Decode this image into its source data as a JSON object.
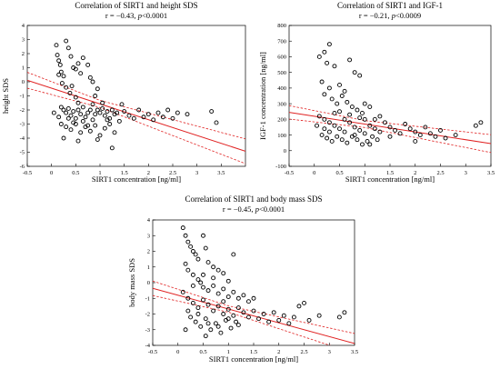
{
  "chart_data": [
    {
      "type": "scatter",
      "title": "Correlation of SIRT1 and height SDS",
      "subtitle": "r = −0.43, p<0.0001",
      "subtitle_parts": {
        "prefix": "r = −0.43, ",
        "p": "p",
        "suffix": "<0.0001"
      },
      "xlabel": "SIRT1 concentration [ng/ml]",
      "ylabel": "height SDS",
      "xlim": [
        -0.5,
        4
      ],
      "ylim": [
        -6,
        4
      ],
      "xticks": [
        "-0.5",
        "0",
        "0.5",
        "1",
        "1.5",
        "2",
        "2.5",
        "3",
        "3.5"
      ],
      "yticks": [
        "-6",
        "-5",
        "-4",
        "-3",
        "-2",
        "-1",
        "0",
        "1",
        "2",
        "3",
        "4"
      ],
      "regression": {
        "slope": -1.12,
        "intercept": -0.45,
        "ci_halfwidth_at_mean": 0.25,
        "ci_spread": 0.42
      },
      "points": [
        [
          0.1,
          2.6
        ],
        [
          0.12,
          1.9
        ],
        [
          0.15,
          1.5
        ],
        [
          0.18,
          1.2
        ],
        [
          0.2,
          0.7
        ],
        [
          0.25,
          0.4
        ],
        [
          0.3,
          2.9
        ],
        [
          0.35,
          2.4
        ],
        [
          0.4,
          1.8
        ],
        [
          0.45,
          1.0
        ],
        [
          0.5,
          0.9
        ],
        [
          0.55,
          1.3
        ],
        [
          0.6,
          0.6
        ],
        [
          0.65,
          1.7
        ],
        [
          0.75,
          1.2
        ],
        [
          0.8,
          0.3
        ],
        [
          0.85,
          0.0
        ],
        [
          0.95,
          -0.5
        ],
        [
          0.15,
          0.5
        ],
        [
          0.22,
          -0.1
        ],
        [
          0.3,
          -0.4
        ],
        [
          0.38,
          -0.8
        ],
        [
          0.42,
          -0.3
        ],
        [
          0.5,
          -1.1
        ],
        [
          0.2,
          -1.8
        ],
        [
          0.25,
          -2.0
        ],
        [
          0.3,
          -2.2
        ],
        [
          0.35,
          -1.9
        ],
        [
          0.4,
          -2.4
        ],
        [
          0.45,
          -2.1
        ],
        [
          0.5,
          -2.6
        ],
        [
          0.55,
          -2.0
        ],
        [
          0.6,
          -2.3
        ],
        [
          0.65,
          -1.8
        ],
        [
          0.7,
          -2.5
        ],
        [
          0.75,
          -2.2
        ],
        [
          0.8,
          -2.0
        ],
        [
          0.85,
          -2.7
        ],
        [
          0.9,
          -2.3
        ],
        [
          0.95,
          -2.0
        ],
        [
          1.0,
          -2.2
        ],
        [
          1.05,
          -1.9
        ],
        [
          1.1,
          -2.4
        ],
        [
          1.15,
          -2.1
        ],
        [
          1.2,
          -2.6
        ],
        [
          1.25,
          -2.0
        ],
        [
          1.3,
          -2.3
        ],
        [
          1.35,
          -2.2
        ],
        [
          1.4,
          -2.8
        ],
        [
          1.5,
          -2.1
        ],
        [
          1.6,
          -2.4
        ],
        [
          1.7,
          -2.6
        ],
        [
          1.8,
          -2.0
        ],
        [
          1.9,
          -2.5
        ],
        [
          2.0,
          -2.3
        ],
        [
          2.1,
          -2.7
        ],
        [
          2.2,
          -2.2
        ],
        [
          2.3,
          -2.5
        ],
        [
          2.4,
          -2.0
        ],
        [
          2.5,
          -2.6
        ],
        [
          2.6,
          -2.2
        ],
        [
          2.8,
          -2.3
        ],
        [
          3.3,
          -2.1
        ],
        [
          3.4,
          -2.9
        ],
        [
          0.3,
          -3.2
        ],
        [
          0.4,
          -3.4
        ],
        [
          0.5,
          -3.0
        ],
        [
          0.6,
          -3.6
        ],
        [
          0.7,
          -3.2
        ],
        [
          0.8,
          -3.5
        ],
        [
          0.9,
          -3.1
        ],
        [
          1.0,
          -3.8
        ],
        [
          1.1,
          -3.3
        ],
        [
          1.2,
          -3.0
        ],
        [
          1.3,
          -3.6
        ],
        [
          0.25,
          -4.0
        ],
        [
          0.55,
          -4.2
        ],
        [
          0.95,
          -4.1
        ],
        [
          1.25,
          -4.7
        ],
        [
          0.45,
          -2.9
        ],
        [
          0.65,
          -2.8
        ],
        [
          0.85,
          -1.6
        ],
        [
          1.05,
          -1.5
        ],
        [
          1.45,
          -1.6
        ],
        [
          0.15,
          -2.5
        ],
        [
          0.2,
          -3.0
        ],
        [
          0.35,
          -2.6
        ],
        [
          0.55,
          -1.5
        ],
        [
          0.75,
          -3.1
        ],
        [
          1.15,
          -2.7
        ],
        [
          0.05,
          -2.2
        ],
        [
          0.9,
          -1.0
        ]
      ]
    },
    {
      "type": "scatter",
      "title": "Correlation of SIRT1 and IGF-1",
      "subtitle": "r = −0.21, p<0.0009",
      "subtitle_parts": {
        "prefix": "r = −0.21, ",
        "p": "p",
        "suffix": "<0.0009"
      },
      "xlabel": "SIRT1 concentration [ng/ml]",
      "ylabel": "IGF-1 concentration [ng/ml]",
      "xlim": [
        -0.5,
        3.5
      ],
      "ylim": [
        -100,
        800
      ],
      "xticks": [
        "-0.5",
        "0",
        "0.5",
        "1",
        "1.5",
        "2",
        "2.5",
        "3",
        "3.5"
      ],
      "yticks": [
        "-100",
        "0",
        "100",
        "200",
        "300",
        "400",
        "500",
        "600",
        "700",
        "800"
      ],
      "regression": {
        "slope": -50,
        "intercept": 220,
        "ci_halfwidth_at_mean": 22,
        "ci_spread": 28
      },
      "points": [
        [
          0.1,
          600
        ],
        [
          0.2,
          630
        ],
        [
          0.3,
          680
        ],
        [
          0.25,
          560
        ],
        [
          0.4,
          540
        ],
        [
          0.5,
          420
        ],
        [
          0.6,
          380
        ],
        [
          0.7,
          580
        ],
        [
          0.8,
          500
        ],
        [
          0.9,
          480
        ],
        [
          0.15,
          440
        ],
        [
          0.3,
          400
        ],
        [
          0.2,
          360
        ],
        [
          0.35,
          330
        ],
        [
          0.45,
          300
        ],
        [
          0.55,
          350
        ],
        [
          0.65,
          310
        ],
        [
          0.75,
          280
        ],
        [
          0.85,
          260
        ],
        [
          0.95,
          240
        ],
        [
          1.0,
          300
        ],
        [
          1.1,
          280
        ],
        [
          0.1,
          220
        ],
        [
          0.2,
          200
        ],
        [
          0.3,
          180
        ],
        [
          0.4,
          160
        ],
        [
          0.5,
          140
        ],
        [
          0.6,
          120
        ],
        [
          0.7,
          180
        ],
        [
          0.8,
          150
        ],
        [
          0.9,
          130
        ],
        [
          1.0,
          110
        ],
        [
          1.1,
          160
        ],
        [
          1.2,
          140
        ],
        [
          1.3,
          120
        ],
        [
          1.4,
          180
        ],
        [
          1.5,
          150
        ],
        [
          1.6,
          130
        ],
        [
          1.7,
          110
        ],
        [
          1.8,
          170
        ],
        [
          1.9,
          140
        ],
        [
          2.0,
          120
        ],
        [
          2.1,
          100
        ],
        [
          2.2,
          150
        ],
        [
          2.3,
          110
        ],
        [
          2.4,
          90
        ],
        [
          2.5,
          130
        ],
        [
          2.6,
          80
        ],
        [
          2.8,
          100
        ],
        [
          3.2,
          160
        ],
        [
          3.3,
          180
        ],
        [
          0.15,
          100
        ],
        [
          0.25,
          80
        ],
        [
          0.35,
          60
        ],
        [
          0.45,
          90
        ],
        [
          0.55,
          70
        ],
        [
          0.65,
          50
        ],
        [
          0.75,
          90
        ],
        [
          0.85,
          70
        ],
        [
          0.95,
          40
        ],
        [
          1.05,
          60
        ],
        [
          1.15,
          90
        ],
        [
          1.25,
          70
        ],
        [
          0.5,
          250
        ],
        [
          0.7,
          230
        ],
        [
          0.9,
          210
        ],
        [
          1.2,
          200
        ],
        [
          1.3,
          220
        ],
        [
          0.3,
          120
        ],
        [
          0.6,
          200
        ],
        [
          0.8,
          100
        ],
        [
          1.0,
          200
        ],
        [
          0.2,
          140
        ],
        [
          0.4,
          240
        ],
        [
          1.1,
          40
        ],
        [
          0.05,
          160
        ],
        [
          1.5,
          90
        ],
        [
          2.0,
          60
        ]
      ]
    },
    {
      "type": "scatter",
      "title": "Correlation of SIRT1 and body mass SDS",
      "subtitle": "r = −0.45, p<0.0001",
      "subtitle_parts": {
        "prefix": "r = −0.45, ",
        "p": "p",
        "suffix": "<0.0001"
      },
      "xlabel": "SIRT1 concentration [ng/ml]",
      "ylabel": "body mass SDS",
      "xlim": [
        -0.5,
        3.5
      ],
      "ylim": [
        -4,
        4
      ],
      "xticks": [
        "-0.5",
        "0",
        "0.5",
        "1",
        "1.5",
        "2",
        "2.5",
        "3",
        "3.5"
      ],
      "yticks": [
        "-4",
        "-3",
        "-2",
        "-1",
        "0",
        "1",
        "2",
        "3",
        "4"
      ],
      "regression": {
        "slope": -0.88,
        "intercept": -0.8,
        "ci_halfwidth_at_mean": 0.2,
        "ci_spread": 0.35
      },
      "points": [
        [
          0.1,
          3.5
        ],
        [
          0.15,
          3.0
        ],
        [
          0.2,
          2.6
        ],
        [
          0.25,
          2.3
        ],
        [
          0.3,
          2.0
        ],
        [
          0.35,
          1.8
        ],
        [
          0.4,
          1.5
        ],
        [
          0.5,
          3.0
        ],
        [
          0.55,
          2.2
        ],
        [
          0.6,
          1.3
        ],
        [
          0.7,
          1.0
        ],
        [
          0.8,
          0.8
        ],
        [
          0.9,
          0.6
        ],
        [
          1.1,
          1.8
        ],
        [
          0.15,
          1.2
        ],
        [
          0.2,
          0.8
        ],
        [
          0.3,
          0.5
        ],
        [
          0.4,
          0.2
        ],
        [
          0.45,
          0.0
        ],
        [
          0.5,
          -0.3
        ],
        [
          0.6,
          -0.5
        ],
        [
          0.7,
          -0.2
        ],
        [
          0.8,
          -0.7
        ],
        [
          0.9,
          -0.4
        ],
        [
          1.0,
          -0.9
        ],
        [
          1.1,
          -0.6
        ],
        [
          1.2,
          -1.0
        ],
        [
          1.3,
          -0.8
        ],
        [
          1.4,
          -1.2
        ],
        [
          0.1,
          -0.6
        ],
        [
          0.2,
          -1.0
        ],
        [
          0.3,
          -1.3
        ],
        [
          0.4,
          -1.6
        ],
        [
          0.5,
          -1.1
        ],
        [
          0.6,
          -1.4
        ],
        [
          0.7,
          -1.8
        ],
        [
          0.8,
          -1.5
        ],
        [
          0.9,
          -2.0
        ],
        [
          1.0,
          -1.7
        ],
        [
          1.1,
          -2.1
        ],
        [
          1.2,
          -1.6
        ],
        [
          1.3,
          -1.9
        ],
        [
          1.4,
          -2.2
        ],
        [
          1.5,
          -1.8
        ],
        [
          1.6,
          -2.3
        ],
        [
          1.7,
          -2.0
        ],
        [
          1.8,
          -2.5
        ],
        [
          1.9,
          -1.9
        ],
        [
          2.0,
          -2.4
        ],
        [
          2.1,
          -2.1
        ],
        [
          2.2,
          -2.6
        ],
        [
          2.3,
          -2.2
        ],
        [
          2.4,
          -1.5
        ],
        [
          2.5,
          -1.3
        ],
        [
          2.6,
          -2.4
        ],
        [
          2.8,
          -2.1
        ],
        [
          3.2,
          -2.2
        ],
        [
          3.3,
          -1.9
        ],
        [
          0.25,
          -2.2
        ],
        [
          0.35,
          -2.5
        ],
        [
          0.45,
          -2.8
        ],
        [
          0.55,
          -2.3
        ],
        [
          0.65,
          -3.0
        ],
        [
          0.75,
          -2.6
        ],
        [
          0.85,
          -3.2
        ],
        [
          0.95,
          -2.4
        ],
        [
          1.05,
          -2.9
        ],
        [
          1.15,
          -2.5
        ],
        [
          0.2,
          -1.8
        ],
        [
          0.4,
          -2.0
        ],
        [
          0.6,
          -2.6
        ],
        [
          0.8,
          -2.8
        ],
        [
          1.0,
          -2.3
        ],
        [
          1.2,
          -2.7
        ],
        [
          0.3,
          -0.2
        ],
        [
          0.5,
          0.5
        ],
        [
          0.7,
          0.3
        ],
        [
          1.0,
          0.1
        ],
        [
          0.15,
          -3.0
        ],
        [
          0.55,
          -3.4
        ],
        [
          0.9,
          -1.2
        ],
        [
          1.5,
          -1.0
        ]
      ]
    }
  ]
}
